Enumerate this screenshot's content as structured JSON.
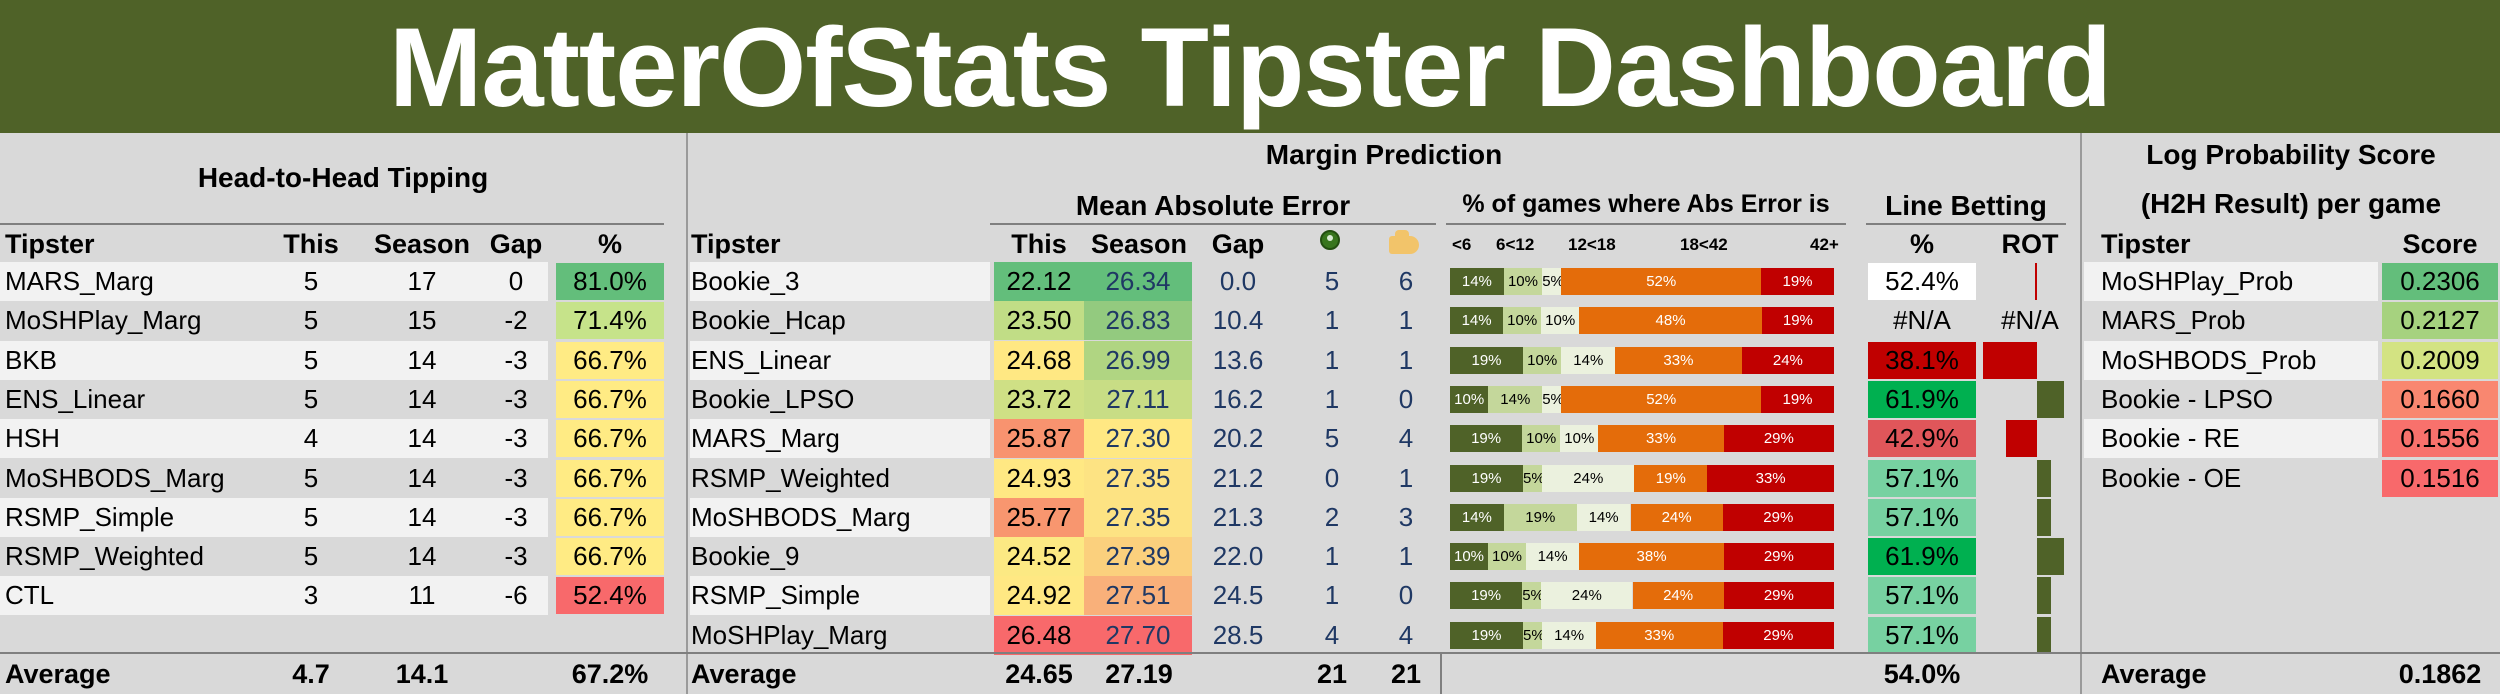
{
  "title": "MatterOfStats Tipster Dashboard",
  "colors": {
    "brand": "#4f6228",
    "red": "#c00000",
    "orange": "#e46c0a",
    "dark_green": "#4f6228",
    "light_green": "#c4d79b",
    "pale": "#ebf1de"
  },
  "h2h": {
    "title": "Head-to-Head Tipping",
    "headers": {
      "tipster": "Tipster",
      "this": "This",
      "season": "Season",
      "gap": "Gap",
      "pct": "%"
    },
    "rows": [
      {
        "tipster": "MARS_Marg",
        "this": "5",
        "season": "17",
        "gap": "0",
        "pct": "81.0%",
        "color": "#63be7b"
      },
      {
        "tipster": "MoSHPlay_Marg",
        "this": "5",
        "season": "15",
        "gap": "-2",
        "pct": "71.4%",
        "color": "#c6e38a"
      },
      {
        "tipster": "BKB",
        "this": "5",
        "season": "14",
        "gap": "-3",
        "pct": "66.7%",
        "color": "#ffeb84"
      },
      {
        "tipster": "ENS_Linear",
        "this": "5",
        "season": "14",
        "gap": "-3",
        "pct": "66.7%",
        "color": "#ffeb84"
      },
      {
        "tipster": "HSH",
        "this": "4",
        "season": "14",
        "gap": "-3",
        "pct": "66.7%",
        "color": "#ffeb84"
      },
      {
        "tipster": "MoSHBODS_Marg",
        "this": "5",
        "season": "14",
        "gap": "-3",
        "pct": "66.7%",
        "color": "#ffeb84"
      },
      {
        "tipster": "RSMP_Simple",
        "this": "5",
        "season": "14",
        "gap": "-3",
        "pct": "66.7%",
        "color": "#ffeb84"
      },
      {
        "tipster": "RSMP_Weighted",
        "this": "5",
        "season": "14",
        "gap": "-3",
        "pct": "66.7%",
        "color": "#ffeb84"
      },
      {
        "tipster": "CTL",
        "this": "3",
        "season": "11",
        "gap": "-6",
        "pct": "52.4%",
        "color": "#f8696b"
      }
    ],
    "average": {
      "label": "Average",
      "this": "4.7",
      "season": "14.1",
      "pct": "67.2%"
    }
  },
  "margin": {
    "title": "Margin Prediction",
    "mae_title": "Mean Absolute Error",
    "dist_title": "% of games where Abs Error is",
    "line_title": "Line Betting",
    "headers": {
      "tipster": "Tipster",
      "this": "This",
      "season": "Season",
      "gap": "Gap",
      "icon1": "ball-icon",
      "icon2": "hand-icon",
      "pct": "%",
      "rot": "ROT"
    },
    "dist_headers": [
      "<6",
      "6<12",
      "12<18",
      "18<42",
      "42+"
    ],
    "rows": [
      {
        "tipster": "Bookie_3",
        "this": "22.12",
        "season": "26.34",
        "gap": "0.0",
        "c1": "5",
        "c2": "6",
        "this_color": "#63be7b",
        "season_color": "#63be7b",
        "dist": [
          {
            "p": 14,
            "t": "14%"
          },
          {
            "p": 10,
            "t": "10%"
          },
          {
            "p": 5,
            "t": "5%"
          },
          {
            "p": 52,
            "t": "52%"
          },
          {
            "p": 19,
            "t": "19%"
          }
        ],
        "line_pct": "52.4%",
        "line_color": "#ffffff",
        "rot": "",
        "rot_value": -0.01
      },
      {
        "tipster": "Bookie_Hcap",
        "this": "23.50",
        "season": "26.83",
        "gap": "10.4",
        "c1": "1",
        "c2": "1",
        "this_color": "#c1dd86",
        "season_color": "#93ca7f",
        "dist": [
          {
            "p": 14,
            "t": "14%"
          },
          {
            "p": 10,
            "t": "10%"
          },
          {
            "p": 10,
            "t": "10%"
          },
          {
            "p": 48,
            "t": "48%"
          },
          {
            "p": 19,
            "t": "19%"
          }
        ],
        "line_pct": "#N/A",
        "line_color": "#d9d9d9",
        "rot": "#N/A",
        "rot_value": 0
      },
      {
        "tipster": "ENS_Linear",
        "this": "24.68",
        "season": "26.99",
        "gap": "13.6",
        "c1": "1",
        "c2": "1",
        "this_color": "#ffe883",
        "season_color": "#b0d582",
        "dist": [
          {
            "p": 19,
            "t": "19%"
          },
          {
            "p": 10,
            "t": "10%"
          },
          {
            "p": 14,
            "t": "14%"
          },
          {
            "p": 33,
            "t": "33%"
          },
          {
            "p": 24,
            "t": "24%"
          }
        ],
        "line_pct": "38.1%",
        "line_color": "#c00000",
        "rot": "",
        "rot_value": -0.6
      },
      {
        "tipster": "Bookie_LPSO",
        "this": "23.72",
        "season": "27.11",
        "gap": "16.2",
        "c1": "1",
        "c2": "0",
        "this_color": "#cfe085",
        "season_color": "#c8dd85",
        "dist": [
          {
            "p": 10,
            "t": "10%"
          },
          {
            "p": 14,
            "t": "14%"
          },
          {
            "p": 5,
            "t": "5%"
          },
          {
            "p": 52,
            "t": "52%"
          },
          {
            "p": 19,
            "t": "19%"
          }
        ],
        "line_pct": "61.9%",
        "line_color": "#00b050",
        "rot": "",
        "rot_value": 0.3
      },
      {
        "tipster": "MARS_Marg",
        "this": "25.87",
        "season": "27.30",
        "gap": "20.2",
        "c1": "5",
        "c2": "4",
        "this_color": "#f8936f",
        "season_color": "#ffe883",
        "dist": [
          {
            "p": 19,
            "t": "19%"
          },
          {
            "p": 10,
            "t": "10%"
          },
          {
            "p": 10,
            "t": "10%"
          },
          {
            "p": 33,
            "t": "33%"
          },
          {
            "p": 29,
            "t": "29%"
          }
        ],
        "line_pct": "42.9%",
        "line_color": "#e0565a",
        "rot": "",
        "rot_value": -0.35
      },
      {
        "tipster": "RSMP_Weighted",
        "this": "24.93",
        "season": "27.35",
        "gap": "21.2",
        "c1": "0",
        "c2": "1",
        "this_color": "#ffe883",
        "season_color": "#fde383",
        "dist": [
          {
            "p": 19,
            "t": "19%"
          },
          {
            "p": 5,
            "t": "5%"
          },
          {
            "p": 24,
            "t": "24%"
          },
          {
            "p": 19,
            "t": "19%"
          },
          {
            "p": 33,
            "t": "33%"
          }
        ],
        "line_pct": "57.1%",
        "line_color": "#77d1a1",
        "rot": "",
        "rot_value": 0.15
      },
      {
        "tipster": "MoSHBODS_Marg",
        "this": "25.77",
        "season": "27.35",
        "gap": "21.3",
        "c1": "2",
        "c2": "3",
        "this_color": "#f8966f",
        "season_color": "#fde383",
        "dist": [
          {
            "p": 14,
            "t": "14%"
          },
          {
            "p": 19,
            "t": "19%"
          },
          {
            "p": 14,
            "t": "14%"
          },
          {
            "p": 24,
            "t": "24%"
          },
          {
            "p": 29,
            "t": "29%"
          }
        ],
        "line_pct": "57.1%",
        "line_color": "#77d1a1",
        "rot": "",
        "rot_value": 0.15
      },
      {
        "tipster": "Bookie_9",
        "this": "24.52",
        "season": "27.39",
        "gap": "22.0",
        "c1": "1",
        "c2": "1",
        "this_color": "#fce983",
        "season_color": "#fbd07d",
        "dist": [
          {
            "p": 10,
            "t": "10%"
          },
          {
            "p": 10,
            "t": "10%"
          },
          {
            "p": 14,
            "t": "14%"
          },
          {
            "p": 38,
            "t": "38%"
          },
          {
            "p": 29,
            "t": "29%"
          }
        ],
        "line_pct": "61.9%",
        "line_color": "#00b050",
        "rot": "",
        "rot_value": 0.3
      },
      {
        "tipster": "RSMP_Simple",
        "this": "24.92",
        "season": "27.51",
        "gap": "24.5",
        "c1": "1",
        "c2": "0",
        "this_color": "#ffe883",
        "season_color": "#f9b07a",
        "dist": [
          {
            "p": 19,
            "t": "19%"
          },
          {
            "p": 5,
            "t": "5%"
          },
          {
            "p": 24,
            "t": "24%"
          },
          {
            "p": 24,
            "t": "24%"
          },
          {
            "p": 29,
            "t": "29%"
          }
        ],
        "line_pct": "57.1%",
        "line_color": "#77d1a1",
        "rot": "",
        "rot_value": 0.15
      },
      {
        "tipster": "MoSHPlay_Marg",
        "this": "26.48",
        "season": "27.70",
        "gap": "28.5",
        "c1": "4",
        "c2": "4",
        "this_color": "#f8696b",
        "season_color": "#f8696b",
        "dist": [
          {
            "p": 19,
            "t": "19%"
          },
          {
            "p": 5,
            "t": "5%"
          },
          {
            "p": 14,
            "t": "14%"
          },
          {
            "p": 33,
            "t": "33%"
          },
          {
            "p": 29,
            "t": "29%"
          }
        ],
        "line_pct": "57.1%",
        "line_color": "#77d1a1",
        "rot": "",
        "rot_value": 0.15
      }
    ],
    "average": {
      "label": "Average",
      "this": "24.65",
      "season": "27.19",
      "c1": "21",
      "c2": "21",
      "line_pct": "54.0%"
    }
  },
  "logprob": {
    "title1": "Log Probability Score",
    "title2": "(H2H Result) per game",
    "headers": {
      "tipster": "Tipster",
      "score": "Score"
    },
    "rows": [
      {
        "tipster": "MoSHPlay_Prob",
        "score": "0.2306",
        "color": "#63be7b"
      },
      {
        "tipster": "MARS_Prob",
        "score": "0.2127",
        "color": "#a6d27f"
      },
      {
        "tipster": "MoSHBODS_Prob",
        "score": "0.2009",
        "color": "#d3e382"
      },
      {
        "tipster": "Bookie - LPSO",
        "score": "0.1660",
        "color": "#f98770"
      },
      {
        "tipster": "Bookie - RE",
        "score": "0.1556",
        "color": "#f8716c"
      },
      {
        "tipster": "Bookie - OE",
        "score": "0.1516",
        "color": "#f8696b"
      }
    ],
    "average": {
      "label": "Average",
      "score": "0.1862"
    }
  }
}
